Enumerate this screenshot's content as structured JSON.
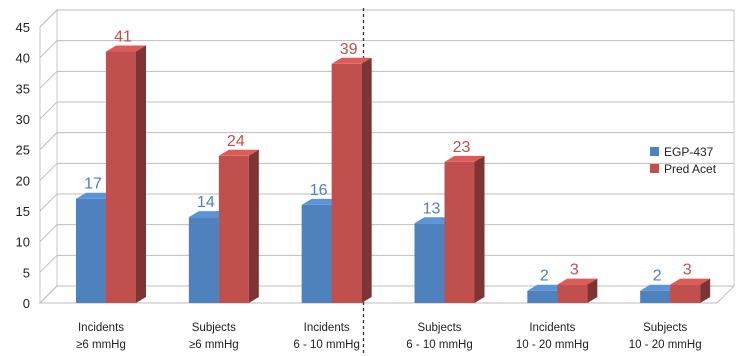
{
  "chart_data": {
    "type": "bar",
    "style": "3d-clustered",
    "categories": [
      [
        "Incidents",
        "≥6 mmHg"
      ],
      [
        "Subjects",
        "≥6 mmHg"
      ],
      [
        "Incidents",
        "6 - 10 mmHg"
      ],
      [
        "Subjects",
        "6 - 10 mmHg"
      ],
      [
        "Incidents",
        "10 - 20 mmHg"
      ],
      [
        "Subjects",
        "10 - 20 mmHg"
      ]
    ],
    "series": [
      {
        "name": "EGP-437",
        "values": [
          17,
          14,
          16,
          13,
          2,
          2
        ],
        "color": "#4f81bd",
        "label_color": "#4f81bd"
      },
      {
        "name": "Pred Acet",
        "values": [
          41,
          24,
          39,
          23,
          3,
          3
        ],
        "color": "#c0504d",
        "label_color": "#c0504d"
      }
    ],
    "ylim": [
      0,
      45
    ],
    "yticks": [
      "0",
      "5",
      "10",
      "15",
      "20",
      "25",
      "30",
      "35",
      "40",
      "45"
    ],
    "grid": true,
    "legend_position": "right",
    "divider_after_category": 2,
    "title": "",
    "xlabel": "",
    "ylabel": ""
  }
}
